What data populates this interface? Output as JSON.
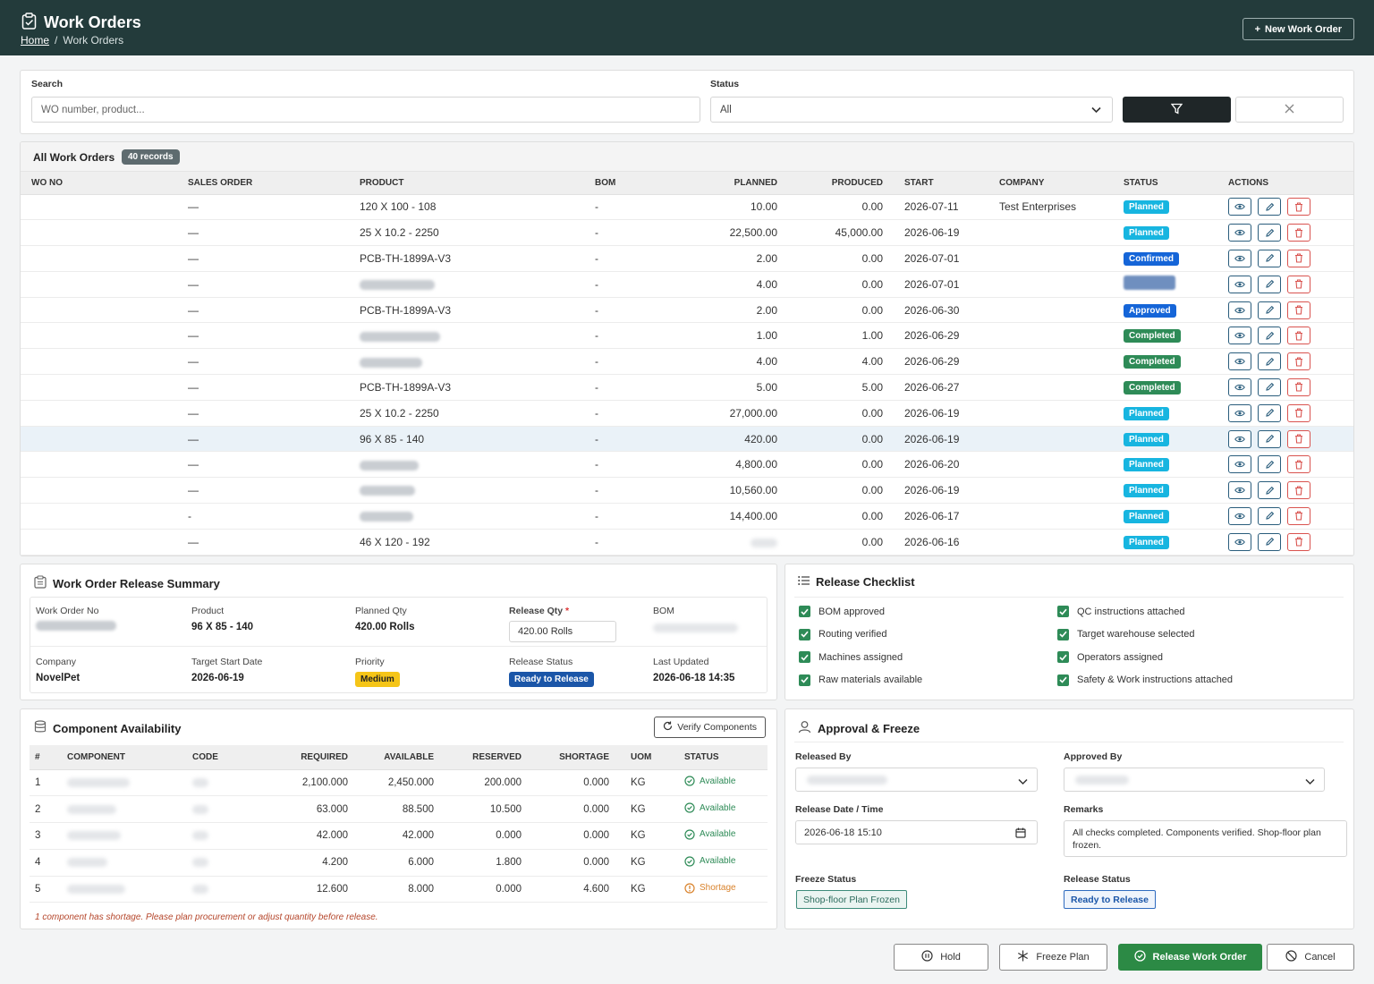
{
  "header": {
    "title": "Work Orders",
    "breadcrumb_home": "Home",
    "breadcrumb_sep": "/",
    "breadcrumb_current": "Work Orders",
    "new_button": "New Work Order"
  },
  "filters": {
    "search_label": "Search",
    "search_placeholder": "WO number, product...",
    "status_label": "Status",
    "status_value": "All"
  },
  "table": {
    "title": "All Work Orders",
    "records": "40 records",
    "columns": [
      "WO NO",
      "SALES ORDER",
      "PRODUCT",
      "BOM",
      "PLANNED",
      "PRODUCED",
      "START",
      "COMPANY",
      "STATUS",
      "ACTIONS"
    ],
    "rows": [
      {
        "so": "—",
        "product": "120 X 100 - 108",
        "bom": "-",
        "planned": "10.00",
        "produced": "0.00",
        "start": "2026-07-11",
        "company": "Test Enterprises",
        "status": "Planned"
      },
      {
        "so": "—",
        "product": "25 X 10.2 - 2250",
        "bom": "-",
        "planned": "22,500.00",
        "produced": "45,000.00",
        "start": "2026-06-19",
        "company": "",
        "status": "Planned"
      },
      {
        "so": "—",
        "product": "PCB-TH-1899A-V3",
        "bom": "-",
        "planned": "2.00",
        "produced": "0.00",
        "start": "2026-07-01",
        "company": "",
        "status": "Confirmed"
      },
      {
        "so": "—",
        "product": "",
        "bom": "-",
        "planned": "4.00",
        "produced": "0.00",
        "start": "2026-07-01",
        "company": "",
        "status": ""
      },
      {
        "so": "—",
        "product": "PCB-TH-1899A-V3",
        "bom": "-",
        "planned": "2.00",
        "produced": "0.00",
        "start": "2026-06-30",
        "company": "",
        "status": "Approved"
      },
      {
        "so": "—",
        "product": "",
        "bom": "-",
        "planned": "1.00",
        "produced": "1.00",
        "start": "2026-06-29",
        "company": "",
        "status": "Completed"
      },
      {
        "so": "—",
        "product": "",
        "bom": "-",
        "planned": "4.00",
        "produced": "4.00",
        "start": "2026-06-29",
        "company": "",
        "status": "Completed"
      },
      {
        "so": "—",
        "product": "PCB-TH-1899A-V3",
        "bom": "-",
        "planned": "5.00",
        "produced": "5.00",
        "start": "2026-06-27",
        "company": "",
        "status": "Completed"
      },
      {
        "so": "—",
        "product": "25 X 10.2 - 2250",
        "bom": "-",
        "planned": "27,000.00",
        "produced": "0.00",
        "start": "2026-06-19",
        "company": "",
        "status": "Planned"
      },
      {
        "so": "—",
        "product": "96 X 85 - 140",
        "bom": "-",
        "planned": "420.00",
        "produced": "0.00",
        "start": "2026-06-19",
        "company": "",
        "status": "Planned"
      },
      {
        "so": "—",
        "product": "",
        "bom": "-",
        "planned": "4,800.00",
        "produced": "0.00",
        "start": "2026-06-20",
        "company": "",
        "status": "Planned"
      },
      {
        "so": "—",
        "product": "",
        "bom": "-",
        "planned": "10,560.00",
        "produced": "0.00",
        "start": "2026-06-19",
        "company": "",
        "status": "Planned"
      },
      {
        "so": "-",
        "product": "",
        "bom": "-",
        "planned": "14,400.00",
        "produced": "0.00",
        "start": "2026-06-17",
        "company": "",
        "status": "Planned"
      },
      {
        "so": "—",
        "product": "46 X 120 - 192",
        "bom": "-",
        "planned": "",
        "produced": "0.00",
        "start": "2026-06-16",
        "company": "",
        "status": "Planned"
      }
    ],
    "status_colors": {
      "Planned": "#17b5e0",
      "Confirmed": "#1565d8",
      "Approved": "#1565d8",
      "Completed": "#2e8b57"
    }
  },
  "summary": {
    "title": "Work Order Release Summary",
    "wo_no_label": "Work Order No",
    "product_label": "Product",
    "product_value": "96 X 85 - 140",
    "planned_label": "Planned Qty",
    "planned_value": "420.00 Rolls",
    "release_qty_label": "Release Qty",
    "required_mark": "*",
    "release_qty_value": "420.00 Rolls",
    "bom_label": "BOM",
    "company_label": "Company",
    "company_value": "NovelPet",
    "target_label": "Target Start Date",
    "target_value": "2026-06-19",
    "priority_label": "Priority",
    "priority_value": "Medium",
    "release_status_label": "Release Status",
    "release_status_value": "Ready to Release",
    "last_updated_label": "Last Updated",
    "last_updated_value": "2026-06-18 14:35"
  },
  "checklist": {
    "title": "Release Checklist",
    "items": [
      "BOM approved",
      "Routing verified",
      "Machines assigned",
      "Raw materials available",
      "QC instructions attached",
      "Target warehouse selected",
      "Operators assigned",
      "Safety & Work instructions attached"
    ]
  },
  "components": {
    "title": "Component Availability",
    "verify_button": "Verify Components",
    "columns": [
      "#",
      "COMPONENT",
      "CODE",
      "REQUIRED",
      "AVAILABLE",
      "RESERVED",
      "SHORTAGE",
      "UOM",
      "STATUS"
    ],
    "rows": [
      {
        "n": "1",
        "required": "2,100.000",
        "available": "2,450.000",
        "reserved": "200.000",
        "shortage": "0.000",
        "uom": "KG",
        "status": "Available"
      },
      {
        "n": "2",
        "required": "63.000",
        "available": "88.500",
        "reserved": "10.500",
        "shortage": "0.000",
        "uom": "KG",
        "status": "Available"
      },
      {
        "n": "3",
        "required": "42.000",
        "available": "42.000",
        "reserved": "0.000",
        "shortage": "0.000",
        "uom": "KG",
        "status": "Available"
      },
      {
        "n": "4",
        "required": "4.200",
        "available": "6.000",
        "reserved": "1.800",
        "shortage": "0.000",
        "uom": "KG",
        "status": "Available"
      },
      {
        "n": "5",
        "required": "12.600",
        "available": "8.000",
        "reserved": "0.000",
        "shortage": "4.600",
        "uom": "KG",
        "status": "Shortage"
      }
    ],
    "note": "1 component has shortage. Please plan procurement or adjust quantity before release."
  },
  "approval": {
    "title": "Approval & Freeze",
    "released_by_label": "Released By",
    "approved_by_label": "Approved By",
    "release_dt_label": "Release Date / Time",
    "release_dt_value": "2026-06-18 15:10",
    "remarks_label": "Remarks",
    "remarks_value": "All checks completed. Components verified. Shop-floor plan frozen.",
    "freeze_status_label": "Freeze Status",
    "freeze_status_value": "Shop-floor Plan Frozen",
    "release_status_label": "Release Status",
    "release_status_value": "Ready to Release"
  },
  "actions": {
    "hold": "Hold",
    "freeze": "Freeze Plan",
    "release": "Release Work Order",
    "cancel": "Cancel"
  }
}
